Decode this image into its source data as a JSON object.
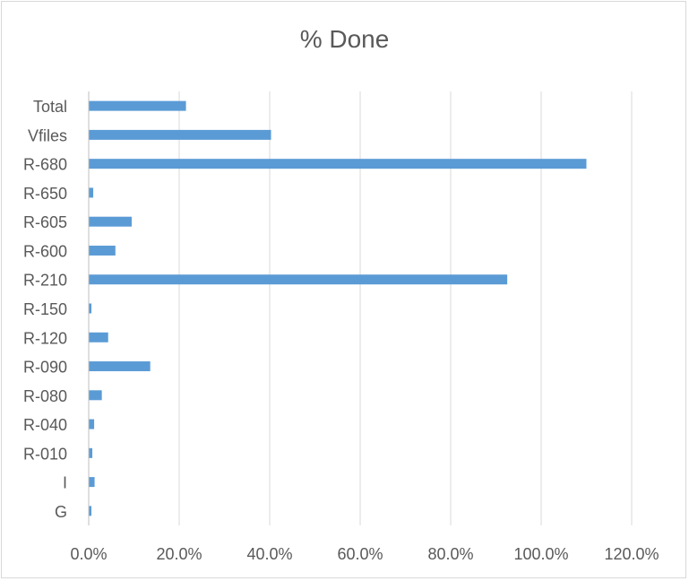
{
  "chart_data": {
    "type": "bar",
    "orientation": "horizontal",
    "title": "% Done",
    "xlabel": "",
    "ylabel": "",
    "categories": [
      "Total",
      "Vfiles",
      "R-680",
      "R-650",
      "R-605",
      "R-600",
      "R-210",
      "R-150",
      "R-120",
      "R-090",
      "R-080",
      "R-040",
      "R-010",
      "I",
      "G"
    ],
    "values": [
      21.5,
      40.3,
      110.0,
      1.0,
      9.5,
      5.9,
      92.5,
      0.6,
      4.3,
      13.6,
      2.9,
      1.2,
      0.8,
      1.3,
      0.6
    ],
    "xlim": [
      0,
      120
    ],
    "xticks": [
      "0.0%",
      "20.0%",
      "40.0%",
      "60.0%",
      "80.0%",
      "100.0%",
      "120.0%"
    ],
    "xtick_values": [
      0,
      20,
      40,
      60,
      80,
      100,
      120
    ],
    "grid": "vertical",
    "legend": "none",
    "bar_color": "#5b9bd5",
    "grid_color": "#d9d9d9",
    "axis_color": "#bfbfbf"
  }
}
